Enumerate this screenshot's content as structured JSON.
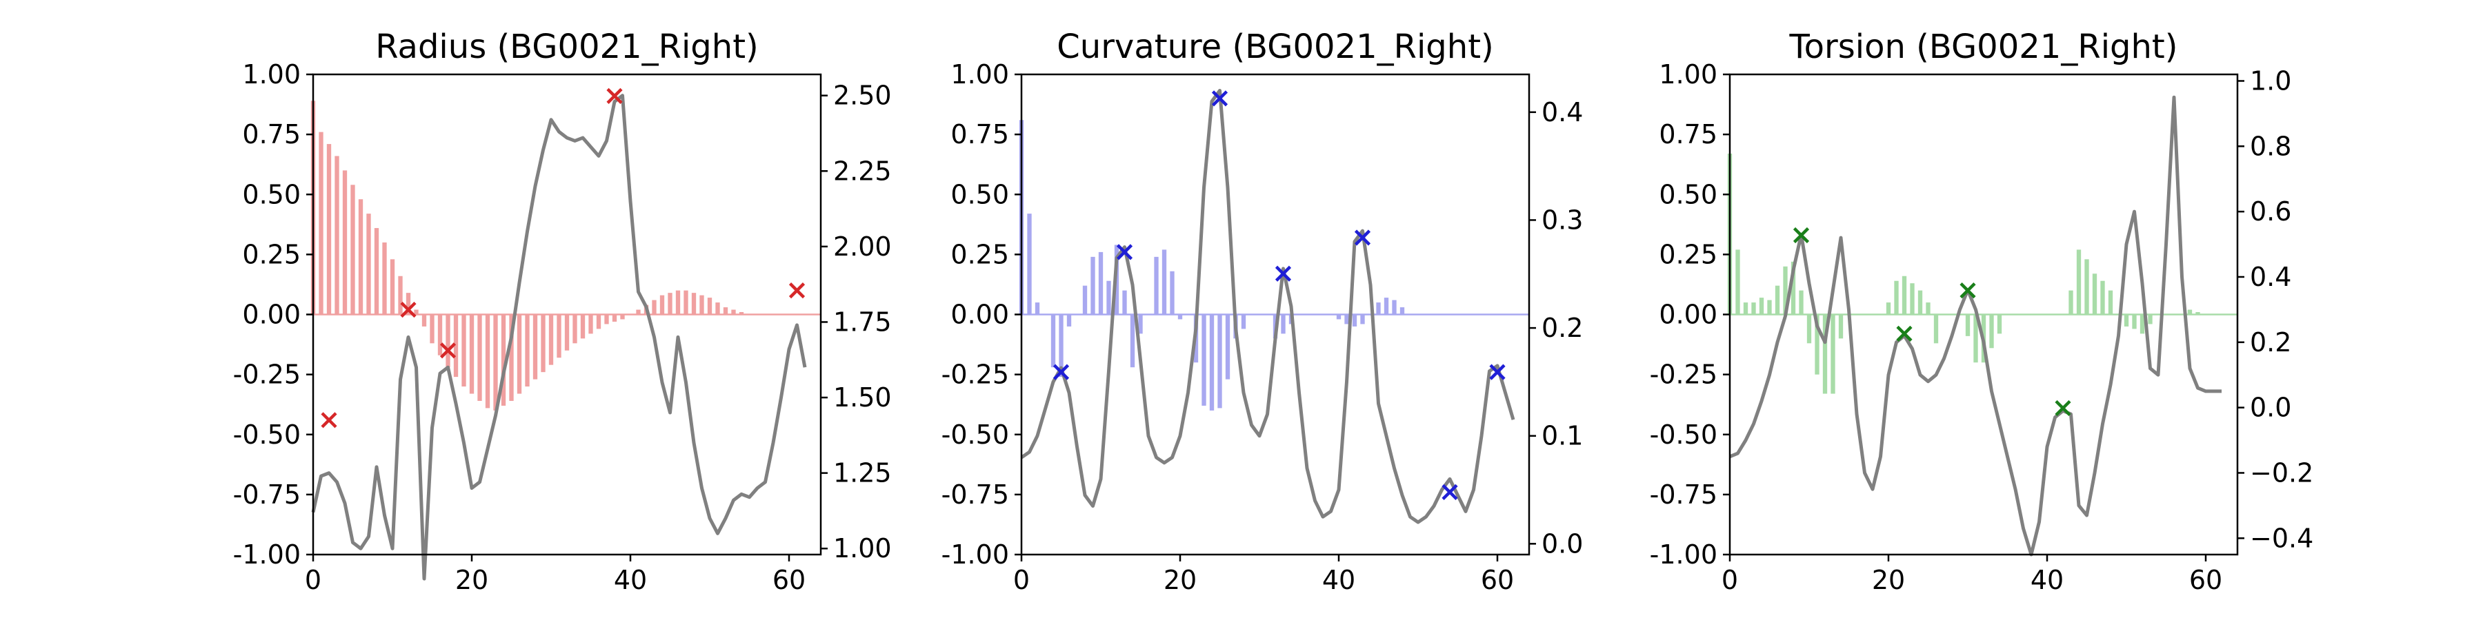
{
  "chart_data": [
    {
      "type": "bar+line",
      "title": "Radius (BG0021_Right)",
      "xlim": [
        0,
        64
      ],
      "ylim": [
        -1.0,
        1.0
      ],
      "y2lim": [
        0.98,
        2.57
      ],
      "x_ticks": [
        0,
        20,
        40,
        60
      ],
      "y_ticks": [
        "-1.00",
        "-0.75",
        "-0.50",
        "-0.25",
        "0.00",
        "0.25",
        "0.50",
        "0.75",
        "1.00"
      ],
      "y2_ticks": [
        "1.00",
        "1.25",
        "1.50",
        "1.75",
        "2.00",
        "2.25",
        "2.50"
      ],
      "bar_color": "#f0a0a0",
      "marker_color": "#d62728",
      "line_color": "#808080",
      "bars": [
        0.89,
        0.76,
        0.71,
        0.66,
        0.6,
        0.54,
        0.48,
        0.42,
        0.36,
        0.3,
        0.23,
        0.16,
        0.09,
        0.02,
        -0.05,
        -0.12,
        -0.17,
        -0.22,
        -0.26,
        -0.3,
        -0.33,
        -0.36,
        -0.39,
        -0.4,
        -0.38,
        -0.36,
        -0.33,
        -0.3,
        -0.27,
        -0.24,
        -0.21,
        -0.18,
        -0.15,
        -0.12,
        -0.1,
        -0.08,
        -0.06,
        -0.04,
        -0.03,
        -0.02,
        0.0,
        0.02,
        0.04,
        0.06,
        0.08,
        0.09,
        0.1,
        0.1,
        0.09,
        0.08,
        0.07,
        0.05,
        0.03,
        0.02,
        0.01,
        0.0,
        0.0,
        0.0,
        0.0,
        0.0,
        0.0,
        0.0,
        0.0
      ],
      "line": [
        1.12,
        1.24,
        1.25,
        1.22,
        1.15,
        1.02,
        1.0,
        1.04,
        1.27,
        1.11,
        1.0,
        1.56,
        1.7,
        1.6,
        0.9,
        1.4,
        1.58,
        1.6,
        1.48,
        1.35,
        1.2,
        1.22,
        1.33,
        1.44,
        1.58,
        1.7,
        1.88,
        2.05,
        2.2,
        2.32,
        2.42,
        2.38,
        2.36,
        2.35,
        2.36,
        2.33,
        2.3,
        2.35,
        2.48,
        2.5,
        2.15,
        1.85,
        1.8,
        1.7,
        1.55,
        1.45,
        1.7,
        1.55,
        1.35,
        1.2,
        1.1,
        1.05,
        1.1,
        1.16,
        1.18,
        1.17,
        1.2,
        1.22,
        1.35,
        1.5,
        1.66,
        1.74,
        1.6
      ],
      "markers": [
        {
          "x": 2,
          "y": -0.44
        },
        {
          "x": 12,
          "y": 0.02
        },
        {
          "x": 17,
          "y": -0.15
        },
        {
          "x": 38,
          "y": 0.91
        },
        {
          "x": 61,
          "y": 0.1
        }
      ]
    },
    {
      "type": "bar+line",
      "title": "Curvature (BG0021_Right)",
      "xlim": [
        0,
        64
      ],
      "ylim": [
        -1.0,
        1.0
      ],
      "y2lim": [
        -0.01,
        0.435
      ],
      "x_ticks": [
        0,
        20,
        40,
        60
      ],
      "y_ticks": [
        "-1.00",
        "-0.75",
        "-0.50",
        "-0.25",
        "0.00",
        "0.25",
        "0.50",
        "0.75",
        "1.00"
      ],
      "y2_ticks": [
        "0.0",
        "0.1",
        "0.2",
        "0.3",
        "0.4"
      ],
      "bar_color": "#a8a8f0",
      "marker_color": "#1f1fd6",
      "line_color": "#808080",
      "bars": [
        0.81,
        0.42,
        0.05,
        0.0,
        -0.22,
        -0.26,
        -0.05,
        0.0,
        0.12,
        0.24,
        0.26,
        0.14,
        0.29,
        0.1,
        -0.22,
        -0.08,
        0.0,
        0.24,
        0.27,
        0.18,
        -0.02,
        0.0,
        -0.2,
        -0.38,
        -0.4,
        -0.39,
        -0.27,
        -0.1,
        -0.06,
        0.0,
        0.0,
        0.0,
        -0.1,
        -0.08,
        -0.04,
        0.0,
        0.0,
        0.0,
        0.0,
        0.0,
        -0.02,
        -0.04,
        -0.05,
        -0.04,
        0.0,
        0.05,
        0.07,
        0.06,
        0.03,
        0.0,
        0.0,
        0.0,
        0.0,
        0.0,
        0.0,
        0.0,
        0.0,
        0.0,
        0.0,
        0.0,
        0.0,
        0.0,
        0.0
      ],
      "line": [
        0.08,
        0.085,
        0.1,
        0.125,
        0.15,
        0.163,
        0.14,
        0.09,
        0.045,
        0.035,
        0.06,
        0.16,
        0.265,
        0.275,
        0.24,
        0.17,
        0.1,
        0.08,
        0.075,
        0.08,
        0.1,
        0.14,
        0.2,
        0.33,
        0.41,
        0.42,
        0.33,
        0.2,
        0.14,
        0.11,
        0.1,
        0.12,
        0.19,
        0.255,
        0.22,
        0.14,
        0.07,
        0.04,
        0.025,
        0.03,
        0.05,
        0.15,
        0.28,
        0.29,
        0.24,
        0.13,
        0.1,
        0.07,
        0.045,
        0.025,
        0.02,
        0.025,
        0.035,
        0.05,
        0.06,
        0.045,
        0.03,
        0.05,
        0.1,
        0.16,
        0.165,
        0.14,
        0.115
      ],
      "markers": [
        {
          "x": 5,
          "y": -0.24
        },
        {
          "x": 13,
          "y": 0.26
        },
        {
          "x": 25,
          "y": 0.9
        },
        {
          "x": 33,
          "y": 0.17
        },
        {
          "x": 43,
          "y": 0.32
        },
        {
          "x": 54,
          "y": -0.74
        },
        {
          "x": 60,
          "y": -0.24
        }
      ]
    },
    {
      "type": "bar+line",
      "title": "Torsion (BG0021_Right)",
      "xlim": [
        0,
        64
      ],
      "ylim": [
        -1.0,
        1.0
      ],
      "y2lim": [
        -0.45,
        1.02
      ],
      "x_ticks": [
        0,
        20,
        40,
        60
      ],
      "y_ticks": [
        "-1.00",
        "-0.75",
        "-0.50",
        "-0.25",
        "0.00",
        "0.25",
        "0.50",
        "0.75",
        "1.00"
      ],
      "y2_ticks": [
        "-0.4",
        "-0.2",
        "0.0",
        "0.2",
        "0.4",
        "0.6",
        "0.8",
        "1.0"
      ],
      "bar_color": "#a8dca8",
      "marker_color": "#1a7f1a",
      "line_color": "#808080",
      "bars": [
        0.67,
        0.27,
        0.05,
        0.05,
        0.07,
        0.06,
        0.12,
        0.2,
        0.22,
        0.1,
        -0.12,
        -0.25,
        -0.33,
        -0.33,
        -0.1,
        0.0,
        0.0,
        0.0,
        0.0,
        0.0,
        0.05,
        0.14,
        0.16,
        0.13,
        0.1,
        0.05,
        -0.12,
        0.0,
        0.0,
        0.0,
        -0.09,
        -0.2,
        -0.2,
        -0.14,
        -0.08,
        0.0,
        0.0,
        0.0,
        0.0,
        0.0,
        0.0,
        0.0,
        0.0,
        0.1,
        0.27,
        0.23,
        0.17,
        0.14,
        0.1,
        0.0,
        -0.05,
        -0.06,
        -0.08,
        -0.04,
        0.0,
        0.0,
        0.0,
        0.0,
        0.02,
        0.01,
        0.0,
        0.0,
        0.0
      ],
      "line": [
        -0.15,
        -0.14,
        -0.1,
        -0.05,
        0.02,
        0.1,
        0.2,
        0.28,
        0.42,
        0.53,
        0.38,
        0.25,
        0.2,
        0.36,
        0.52,
        0.3,
        -0.02,
        -0.2,
        -0.25,
        -0.15,
        0.1,
        0.2,
        0.22,
        0.18,
        0.1,
        0.08,
        0.1,
        0.15,
        0.22,
        0.3,
        0.36,
        0.3,
        0.2,
        0.05,
        -0.05,
        -0.15,
        -0.25,
        -0.37,
        -0.45,
        -0.35,
        -0.12,
        -0.03,
        -0.01,
        -0.02,
        -0.3,
        -0.33,
        -0.2,
        -0.05,
        0.07,
        0.22,
        0.5,
        0.6,
        0.38,
        0.12,
        0.1,
        0.5,
        0.95,
        0.4,
        0.12,
        0.06,
        0.05,
        0.05,
        0.05
      ],
      "markers": [
        {
          "x": 9,
          "y": 0.33
        },
        {
          "x": 22,
          "y": -0.08
        },
        {
          "x": 30,
          "y": 0.1
        },
        {
          "x": 42,
          "y": -0.39
        }
      ]
    }
  ]
}
